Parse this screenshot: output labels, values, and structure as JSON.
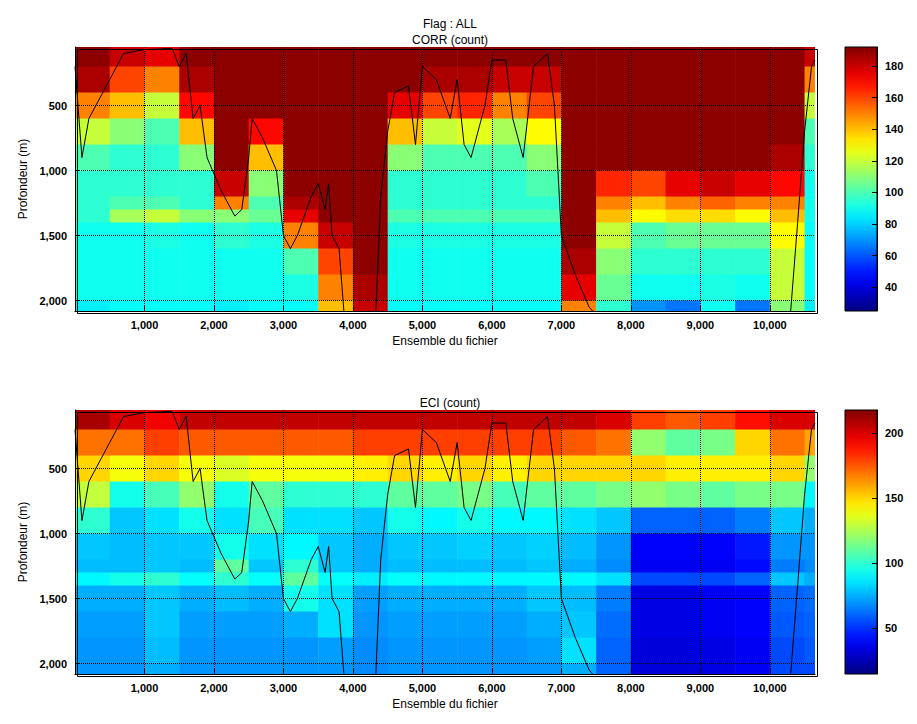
{
  "chart_data": [
    {
      "type": "heatmap",
      "header": "Flag : ALL",
      "title": "CORR (count)",
      "xlabel": "Ensemble du fichier",
      "ylabel": "Profondeur (m)",
      "xlim": [
        0,
        10650
      ],
      "ylim": [
        50,
        2080
      ],
      "xticks": [
        1000,
        2000,
        3000,
        4000,
        5000,
        6000,
        7000,
        8000,
        9000,
        10000
      ],
      "yticks": [
        500,
        1000,
        1500,
        2000
      ],
      "grid": true,
      "x_edges": [
        0,
        500,
        1000,
        1500,
        2000,
        2500,
        3000,
        3500,
        4000,
        4500,
        5000,
        5500,
        6000,
        6500,
        7000,
        7500,
        8000,
        8500,
        9000,
        9500,
        10000,
        10500,
        10650
      ],
      "depth_edges": [
        50,
        200,
        400,
        600,
        800,
        1000,
        1200,
        1300,
        1400,
        1600,
        1800,
        2000,
        2080
      ],
      "cells": [
        [
          190,
          185,
          150,
          120,
          100,
          95,
          95,
          95,
          90,
          90,
          90,
          85
        ],
        [
          180,
          160,
          140,
          110,
          95,
          95,
          100,
          115,
          90,
          90,
          90,
          88
        ],
        [
          175,
          150,
          120,
          100,
          95,
          95,
          100,
          120,
          92,
          90,
          90,
          88
        ],
        [
          190,
          185,
          170,
          140,
          110,
          95,
          95,
          110,
          90,
          90,
          90,
          88
        ],
        [
          190,
          190,
          190,
          190,
          190,
          180,
          150,
          110,
          95,
          90,
          90,
          85
        ],
        [
          190,
          190,
          190,
          170,
          140,
          110,
          100,
          105,
          92,
          90,
          90,
          88
        ],
        [
          190,
          190,
          190,
          190,
          190,
          190,
          185,
          175,
          150,
          100,
          92,
          88
        ],
        [
          190,
          190,
          190,
          190,
          190,
          190,
          190,
          190,
          180,
          160,
          150,
          140
        ],
        [
          190,
          190,
          190,
          190,
          190,
          190,
          190,
          190,
          190,
          190,
          185,
          180
        ],
        [
          190,
          190,
          175,
          140,
          110,
          95,
          95,
          100,
          92,
          90,
          90,
          88
        ],
        [
          190,
          185,
          160,
          120,
          100,
          95,
          95,
          100,
          92,
          90,
          90,
          88
        ],
        [
          190,
          185,
          165,
          125,
          100,
          95,
          95,
          100,
          92,
          90,
          90,
          88
        ],
        [
          190,
          180,
          150,
          115,
          100,
          95,
          95,
          100,
          92,
          90,
          90,
          88
        ],
        [
          190,
          180,
          160,
          130,
          110,
          100,
          95,
          100,
          92,
          90,
          90,
          88
        ],
        [
          190,
          190,
          190,
          190,
          190,
          190,
          190,
          190,
          190,
          185,
          175,
          150
        ],
        [
          190,
          190,
          190,
          190,
          190,
          165,
          150,
          140,
          120,
          110,
          105,
          95
        ],
        [
          190,
          190,
          190,
          190,
          190,
          160,
          140,
          130,
          100,
          95,
          90,
          70
        ],
        [
          190,
          190,
          190,
          190,
          190,
          175,
          150,
          135,
          105,
          95,
          90,
          65
        ],
        [
          190,
          190,
          190,
          190,
          190,
          180,
          155,
          135,
          105,
          95,
          92,
          90
        ],
        [
          190,
          190,
          190,
          190,
          190,
          175,
          150,
          130,
          105,
          95,
          90,
          65
        ],
        [
          190,
          190,
          190,
          190,
          185,
          170,
          150,
          140,
          130,
          120,
          120,
          110
        ],
        [
          180,
          150,
          120,
          100,
          95,
          90,
          90,
          90,
          88,
          88,
          88,
          85
        ]
      ],
      "colorbar": {
        "range": [
          25,
          192
        ],
        "ticks": [
          40,
          60,
          80,
          100,
          120,
          140,
          160,
          180
        ]
      },
      "line": {
        "color": "#000000",
        "x": [
          0,
          100,
          200,
          300,
          500,
          700,
          1000,
          1400,
          1500,
          1600,
          1700,
          1800,
          1900,
          2100,
          2300,
          2400,
          2500,
          2550,
          2700,
          2900,
          3000,
          3100,
          3200,
          3400,
          3500,
          3600,
          3650,
          3700,
          3800,
          3870,
          4100,
          4330,
          4400,
          4500,
          4600,
          4800,
          4900,
          5000,
          5200,
          5400,
          5500,
          5600,
          5700,
          5900,
          6000,
          6200,
          6300,
          6450,
          6600,
          6800,
          6900,
          7000,
          7200,
          7400,
          7450,
          8800,
          10300,
          10400,
          10500,
          10600,
          10650
        ],
        "y": [
          200,
          900,
          600,
          500,
          300,
          100,
          70,
          60,
          200,
          100,
          600,
          500,
          900,
          1150,
          1350,
          1300,
          900,
          600,
          750,
          1000,
          1500,
          1600,
          1500,
          1200,
          1100,
          1300,
          1100,
          1500,
          1600,
          2080,
          null,
          2080,
          1200,
          700,
          400,
          350,
          800,
          200,
          300,
          600,
          300,
          800,
          900,
          500,
          150,
          150,
          600,
          900,
          200,
          100,
          500,
          1500,
          1800,
          2050,
          2080,
          null,
          2080,
          1400,
          700,
          200,
          150
        ]
      }
    },
    {
      "type": "heatmap",
      "title": "ECI (count)",
      "xlabel": "Ensemble du fichier",
      "ylabel": "Profondeur (m)",
      "xlim": [
        0,
        10650
      ],
      "ylim": [
        50,
        2080
      ],
      "xticks": [
        1000,
        2000,
        3000,
        4000,
        5000,
        6000,
        7000,
        8000,
        9000,
        10000
      ],
      "yticks": [
        500,
        1000,
        1500,
        2000
      ],
      "grid": true,
      "x_edges": [
        0,
        500,
        1000,
        1500,
        2000,
        2500,
        3000,
        3500,
        4000,
        4500,
        5000,
        5500,
        6000,
        6500,
        7000,
        7500,
        8000,
        8500,
        9000,
        9500,
        10000,
        10500,
        10650
      ],
      "depth_edges": [
        50,
        200,
        400,
        600,
        800,
        1000,
        1200,
        1300,
        1400,
        1600,
        1800,
        2000,
        2080
      ],
      "cells": [
        [
          210,
          170,
          150,
          130,
          100,
          80,
          78,
          90,
          75,
          72,
          70,
          70
        ],
        [
          200,
          170,
          140,
          95,
          80,
          78,
          78,
          95,
          75,
          72,
          70,
          70
        ],
        [
          195,
          180,
          150,
          105,
          85,
          80,
          80,
          100,
          80,
          80,
          78,
          75
        ],
        [
          205,
          175,
          140,
          120,
          95,
          80,
          78,
          92,
          75,
          72,
          70,
          70
        ],
        [
          205,
          175,
          135,
          95,
          85,
          95,
          110,
          100,
          78,
          72,
          70,
          70
        ],
        [
          205,
          175,
          140,
          110,
          105,
          85,
          80,
          92,
          75,
          72,
          70,
          70
        ],
        [
          205,
          175,
          140,
          100,
          85,
          90,
          100,
          110,
          95,
          75,
          70,
          70
        ],
        [
          205,
          175,
          140,
          100,
          85,
          80,
          80,
          92,
          85,
          85,
          72,
          70
        ],
        [
          205,
          180,
          145,
          100,
          80,
          75,
          75,
          88,
          72,
          70,
          68,
          68
        ],
        [
          205,
          180,
          150,
          110,
          95,
          80,
          78,
          92,
          75,
          72,
          70,
          70
        ],
        [
          205,
          180,
          145,
          110,
          90,
          80,
          78,
          90,
          75,
          72,
          70,
          70
        ],
        [
          205,
          180,
          150,
          115,
          95,
          82,
          78,
          90,
          75,
          72,
          70,
          70
        ],
        [
          205,
          180,
          145,
          105,
          90,
          80,
          78,
          90,
          75,
          72,
          70,
          70
        ],
        [
          205,
          180,
          150,
          110,
          90,
          82,
          80,
          90,
          80,
          75,
          72,
          70
        ],
        [
          205,
          175,
          150,
          110,
          85,
          78,
          75,
          90,
          78,
          80,
          85,
          75
        ],
        [
          200,
          170,
          150,
          115,
          80,
          70,
          68,
          85,
          65,
          62,
          60,
          60
        ],
        [
          180,
          120,
          150,
          120,
          60,
          40,
          38,
          55,
          35,
          35,
          33,
          33
        ],
        [
          175,
          110,
          145,
          115,
          60,
          40,
          38,
          55,
          35,
          35,
          33,
          33
        ],
        [
          180,
          115,
          145,
          110,
          60,
          40,
          38,
          55,
          38,
          38,
          35,
          35
        ],
        [
          190,
          150,
          145,
          115,
          65,
          45,
          42,
          60,
          40,
          40,
          38,
          38
        ],
        [
          200,
          170,
          150,
          115,
          80,
          70,
          65,
          80,
          60,
          58,
          55,
          55
        ],
        [
          200,
          160,
          120,
          90,
          75,
          70,
          68,
          75,
          62,
          60,
          58,
          55
        ]
      ],
      "colorbar": {
        "range": [
          15,
          218
        ],
        "ticks": [
          50,
          100,
          150,
          200
        ]
      },
      "line": {
        "color": "#000000",
        "x": [
          0,
          100,
          200,
          300,
          500,
          700,
          1000,
          1400,
          1500,
          1600,
          1700,
          1800,
          1900,
          2100,
          2300,
          2400,
          2500,
          2550,
          2700,
          2900,
          3000,
          3100,
          3200,
          3400,
          3500,
          3600,
          3650,
          3700,
          3800,
          3870,
          4100,
          4330,
          4400,
          4500,
          4600,
          4800,
          4900,
          5000,
          5200,
          5400,
          5500,
          5600,
          5700,
          5900,
          6000,
          6200,
          6300,
          6450,
          6600,
          6800,
          6900,
          7000,
          7200,
          7400,
          7450,
          8800,
          10300,
          10400,
          10500,
          10600,
          10650
        ],
        "y": [
          200,
          900,
          600,
          500,
          300,
          100,
          70,
          60,
          200,
          100,
          600,
          500,
          900,
          1150,
          1350,
          1300,
          900,
          600,
          750,
          1000,
          1500,
          1600,
          1500,
          1200,
          1100,
          1300,
          1100,
          1500,
          1600,
          2080,
          null,
          2080,
          1200,
          700,
          400,
          350,
          800,
          200,
          300,
          600,
          300,
          800,
          900,
          500,
          150,
          150,
          600,
          900,
          200,
          100,
          500,
          1500,
          1800,
          2050,
          2080,
          null,
          2080,
          1400,
          700,
          200,
          150
        ]
      }
    }
  ]
}
